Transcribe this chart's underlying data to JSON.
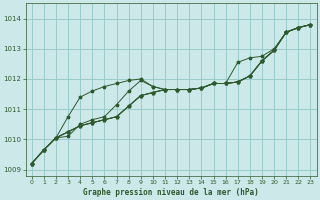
{
  "title": "Graphe pression niveau de la mer (hPa)",
  "bg_color": "#cce8e8",
  "grid_color": "#99cccc",
  "line_color": "#2d5a2d",
  "xlim": [
    -0.5,
    23.5
  ],
  "ylim": [
    1008.8,
    1014.5
  ],
  "yticks": [
    1009,
    1010,
    1011,
    1012,
    1013,
    1014
  ],
  "xticks": [
    0,
    1,
    2,
    3,
    4,
    5,
    6,
    7,
    8,
    9,
    10,
    11,
    12,
    13,
    14,
    15,
    16,
    17,
    18,
    19,
    20,
    21,
    22,
    23
  ],
  "series": [
    [
      1009.2,
      1009.65,
      1010.05,
      1010.25,
      1010.45,
      1010.55,
      1010.65,
      1010.75,
      1011.1,
      1011.45,
      1011.55,
      1011.65,
      1011.65,
      1011.65,
      1011.7,
      1011.85,
      1011.85,
      1011.9,
      1012.1,
      1012.6,
      1012.95,
      1013.55,
      1013.7,
      1013.8
    ],
    [
      1009.2,
      1009.65,
      1010.05,
      1010.75,
      1011.4,
      1011.6,
      1011.75,
      1011.85,
      1011.95,
      1012.0,
      1011.75,
      1011.65,
      1011.65,
      1011.65,
      1011.7,
      1011.85,
      1011.85,
      1011.9,
      1012.1,
      1012.6,
      1012.95,
      1013.55,
      1013.7,
      1013.8
    ],
    [
      1009.2,
      1009.65,
      1010.05,
      1010.1,
      1010.5,
      1010.65,
      1010.75,
      1011.15,
      1011.6,
      1011.95,
      1011.75,
      1011.65,
      1011.65,
      1011.65,
      1011.7,
      1011.85,
      1011.85,
      1011.9,
      1012.1,
      1012.6,
      1012.95,
      1013.55,
      1013.7,
      1013.8
    ],
    [
      1009.2,
      1009.65,
      1010.05,
      1010.25,
      1010.45,
      1010.55,
      1010.65,
      1010.75,
      1011.1,
      1011.45,
      1011.55,
      1011.65,
      1011.65,
      1011.65,
      1011.7,
      1011.85,
      1011.85,
      1012.55,
      1012.7,
      1012.75,
      1013.0,
      1013.55,
      1013.7,
      1013.8
    ],
    [
      1009.2,
      1009.65,
      1010.05,
      1010.25,
      1010.45,
      1010.55,
      1010.65,
      1010.75,
      1011.1,
      1011.45,
      1011.55,
      1011.65,
      1011.65,
      1011.65,
      1011.7,
      1011.85,
      1011.85,
      1011.9,
      1012.1,
      1012.6,
      1012.95,
      1013.55,
      1013.7,
      1013.8
    ]
  ],
  "figsize": [
    3.2,
    2.0
  ],
  "dpi": 100
}
